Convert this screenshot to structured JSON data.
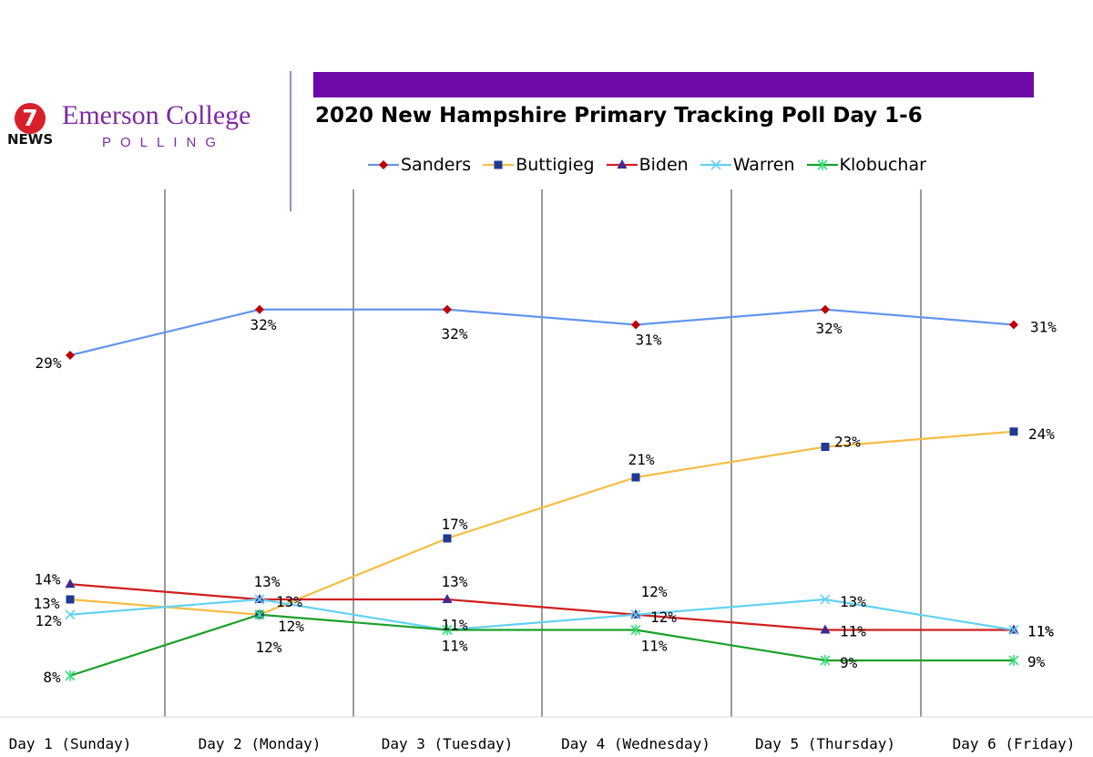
{
  "header": {
    "logo_number": "7",
    "logo_news": "NEWS",
    "logo_name": "Emerson College",
    "logo_sub": "POLLING",
    "title_bar_color": "#6f0aa8"
  },
  "chart_data": {
    "type": "line",
    "title": "2020 New Hampshire Primary Tracking Poll Day 1-6",
    "categories": [
      "Day 1 (Sunday)",
      "Day 2 (Monday)",
      "Day 3 (Tuesday)",
      "Day 4 (Wednesday)",
      "Day 5 (Thursday)",
      "Day 6 (Friday)"
    ],
    "xlabel": "",
    "ylabel": "",
    "ylim": [
      7,
      34
    ],
    "grid": "vertical lines between categories",
    "legend_position": "top",
    "series": [
      {
        "name": "Sanders",
        "values": [
          29,
          32,
          32,
          31,
          32,
          31
        ],
        "labels": [
          "29%",
          "32%",
          "32%",
          "31%",
          "32%",
          "31%"
        ],
        "color": "#6495ed",
        "marker": "diamond",
        "marker_color": "#c00000"
      },
      {
        "name": "Buttigieg",
        "values": [
          13,
          12,
          17,
          21,
          23,
          24
        ],
        "labels": [
          "13%",
          "12%",
          "17%",
          "21%",
          "23%",
          "24%"
        ],
        "color": "#f5bd44",
        "marker": "square",
        "marker_color": "#1f3a93"
      },
      {
        "name": "Biden",
        "values": [
          14,
          13,
          13,
          12,
          11,
          11
        ],
        "labels": [
          "14%",
          "13%",
          "13%",
          "12%",
          "11%",
          "11%"
        ],
        "color": "#d01f1f",
        "marker": "triangle",
        "marker_color": "#3f2a8c"
      },
      {
        "name": "Warren",
        "values": [
          12,
          13,
          11,
          12,
          13,
          11
        ],
        "labels": [
          "12%",
          "13%",
          "11%",
          "12%",
          "13%",
          "11%"
        ],
        "color": "#63d2f2",
        "marker": "x",
        "marker_color": "#63d2f2"
      },
      {
        "name": "Klobuchar",
        "values": [
          8,
          12,
          11,
          11,
          9,
          9
        ],
        "labels": [
          "8%",
          "12%",
          "11%",
          "11%",
          "9%",
          "9%"
        ],
        "color": "#1aa12a",
        "marker": "star",
        "marker_color": "#36e07a"
      }
    ]
  }
}
